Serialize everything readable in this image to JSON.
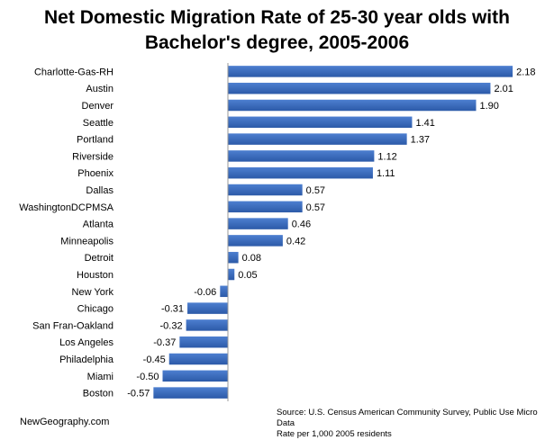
{
  "chart_data": {
    "type": "bar",
    "orientation": "horizontal",
    "title_lines": [
      "Net Domestic Migration Rate of 25-30 year olds with",
      "Bachelor's degree, 2005-2006"
    ],
    "categories": [
      "Charlotte-Gas-RH",
      "Austin",
      "Denver",
      "Seattle",
      "Portland",
      "Riverside",
      "Phoenix",
      "Dallas",
      "WashingtonDCPMSA",
      "Atlanta",
      "Minneapolis",
      "Detroit",
      "Houston",
      "New York",
      "Chicago",
      "San Fran-Oakland",
      "Los Angeles",
      "Philadelphia",
      "Miami",
      "Boston"
    ],
    "values": [
      2.18,
      2.01,
      1.9,
      1.41,
      1.37,
      1.12,
      1.11,
      0.57,
      0.57,
      0.46,
      0.42,
      0.08,
      0.05,
      -0.06,
      -0.31,
      -0.32,
      -0.37,
      -0.45,
      -0.5,
      -0.57
    ],
    "value_labels": [
      "2.18",
      "2.01",
      "1.90",
      "1.41",
      "1.37",
      "1.12",
      "1.11",
      "0.57",
      "0.57",
      "0.46",
      "0.42",
      "0.08",
      "0.05",
      "-0.06",
      "-0.31",
      "-0.32",
      "-0.37",
      "-0.45",
      "-0.50",
      "-0.57"
    ],
    "xlim": [
      -0.6,
      2.2
    ],
    "bar_color": "#3f6fbf",
    "grid": false,
    "legend": "none"
  },
  "footer": {
    "brand": "NewGeography.com",
    "source": "Source: U.S. Census American Community Survey, Public Use Micro Data",
    "note": "Rate per 1,000 2005 residents"
  }
}
